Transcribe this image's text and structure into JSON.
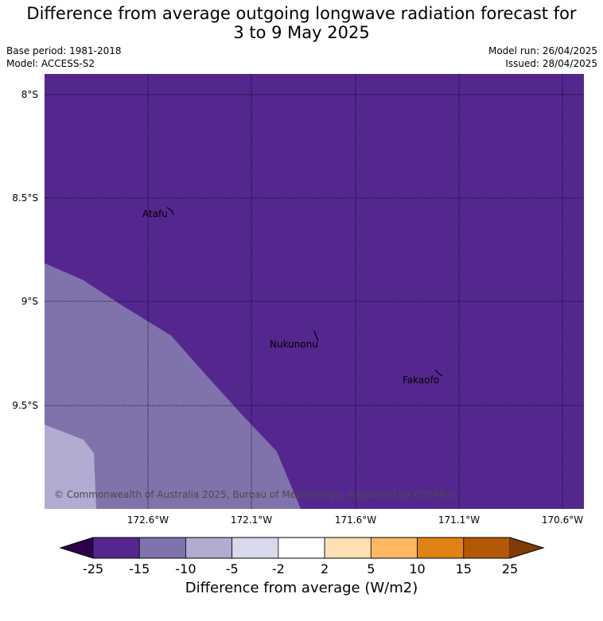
{
  "header": {
    "title_line1": "Difference from average outgoing longwave radiation forecast for",
    "title_line2": "3 to 9 May 2025",
    "base_period": "Base period: 1981-2018",
    "model": "Model: ACCESS-S2",
    "model_run": "Model run: 26/04/2025",
    "issued": "Issued: 28/04/2025"
  },
  "map": {
    "lat_labels": [
      "8°S",
      "8.5°S",
      "9°S",
      "9.5°S"
    ],
    "lon_labels": [
      "172.6°W",
      "172.1°W",
      "171.6°W",
      "171.1°W",
      "170.6°W"
    ],
    "places": [
      "Atafu",
      "Nukunonu",
      "Fakaofo"
    ],
    "copyright": "© Commonwealth of Australia 2025, Bureau of Meteorology, supported by COSPPac",
    "region_colors": {
      "band_-25_-15": "#54278f",
      "band_-15_-10": "#8073ac",
      "band_-10_-5": "#b2abd2"
    }
  },
  "colorbar": {
    "title": "Difference from average (W/m2)",
    "ticks": [
      "-25",
      "-15",
      "-10",
      "-5",
      "-2",
      "2",
      "5",
      "10",
      "15",
      "25"
    ],
    "colors": [
      "#2d004b",
      "#54278f",
      "#8073ac",
      "#b2abd2",
      "#d8daeb",
      "#ffffff",
      "#fee0b6",
      "#fdb863",
      "#e08214",
      "#b35806",
      "#7f3b08"
    ]
  }
}
